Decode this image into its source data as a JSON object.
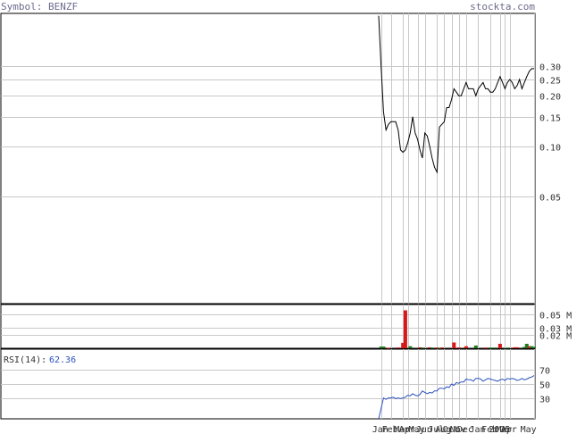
{
  "header": {
    "symbol_label": "Symbol: BENZF",
    "site_label": "stockta.com"
  },
  "colors": {
    "price_line": "#000000",
    "rsi_line": "#2a52be",
    "volume_up": "#1f7a1f",
    "volume_down": "#d41a1a",
    "grid": "#c8c8c8",
    "border": "#000000",
    "header_text": "#6b6b8e"
  },
  "chart_data": [
    {
      "type": "line",
      "name": "price",
      "scale": "log",
      "yticks": [
        0.3,
        0.25,
        0.2,
        0.15,
        0.1,
        0.05
      ],
      "ytick_labels": [
        "0.30",
        "0.25",
        "0.20",
        "0.15",
        "0.10",
        "0.05"
      ],
      "ylim": [
        0.0115,
        0.62
      ],
      "xlim": [
        0,
        65
      ],
      "x": [
        0,
        1,
        2,
        3,
        4,
        5,
        6,
        7,
        8,
        9,
        10,
        11,
        12,
        13,
        14,
        15,
        16,
        17,
        18,
        19,
        20,
        21,
        22,
        23,
        24,
        25,
        26,
        27,
        28,
        29,
        30,
        31,
        32,
        33,
        34,
        35,
        36,
        37,
        38,
        39,
        40,
        41,
        42,
        43,
        44,
        45,
        46,
        47,
        48,
        49,
        50,
        51,
        52,
        53,
        54,
        55,
        56,
        57,
        58,
        59,
        60,
        61,
        62,
        63,
        64
      ],
      "values": [
        0.6,
        0.3,
        0.16,
        0.125,
        0.135,
        0.14,
        0.14,
        0.14,
        0.125,
        0.095,
        0.092,
        0.095,
        0.105,
        0.12,
        0.15,
        0.12,
        0.11,
        0.095,
        0.085,
        0.12,
        0.115,
        0.1,
        0.085,
        0.075,
        0.07,
        0.13,
        0.135,
        0.14,
        0.17,
        0.17,
        0.19,
        0.22,
        0.21,
        0.2,
        0.2,
        0.22,
        0.24,
        0.22,
        0.22,
        0.22,
        0.2,
        0.22,
        0.23,
        0.24,
        0.22,
        0.22,
        0.21,
        0.21,
        0.22,
        0.24,
        0.26,
        0.24,
        0.22,
        0.24,
        0.25,
        0.24,
        0.22,
        0.23,
        0.25,
        0.22,
        0.24,
        0.26,
        0.28,
        0.29,
        0.29
      ]
    },
    {
      "type": "bar",
      "name": "volume",
      "yticks": [
        0.05,
        0.03,
        0.02
      ],
      "ytick_labels": [
        "0.05 M",
        "0.03 M",
        "0.02 M"
      ],
      "ylim": [
        0,
        0.064
      ],
      "xlim": [
        0,
        65
      ],
      "bars": [
        {
          "x": 1,
          "value": 0.0025,
          "dir": "up"
        },
        {
          "x": 2,
          "value": 0.0025,
          "dir": "up"
        },
        {
          "x": 4,
          "value": 0.0008,
          "dir": "down"
        },
        {
          "x": 8,
          "value": 0.0012,
          "dir": "down"
        },
        {
          "x": 10,
          "value": 0.008,
          "dir": "down"
        },
        {
          "x": 11,
          "value": 0.0555,
          "dir": "down"
        },
        {
          "x": 13,
          "value": 0.003,
          "dir": "up"
        },
        {
          "x": 17,
          "value": 0.0015,
          "dir": "down"
        },
        {
          "x": 18,
          "value": 0.001,
          "dir": "up"
        },
        {
          "x": 21,
          "value": 0.0015,
          "dir": "down"
        },
        {
          "x": 22,
          "value": 0.001,
          "dir": "up"
        },
        {
          "x": 24,
          "value": 0.001,
          "dir": "down"
        },
        {
          "x": 25,
          "value": 0.0008,
          "dir": "up"
        },
        {
          "x": 26,
          "value": 0.0012,
          "dir": "down"
        },
        {
          "x": 31,
          "value": 0.0085,
          "dir": "down"
        },
        {
          "x": 33,
          "value": 0.0012,
          "dir": "down"
        },
        {
          "x": 36,
          "value": 0.003,
          "dir": "down"
        },
        {
          "x": 40,
          "value": 0.004,
          "dir": "up"
        },
        {
          "x": 44,
          "value": 0.001,
          "dir": "down"
        },
        {
          "x": 46,
          "value": 0.001,
          "dir": "up"
        },
        {
          "x": 48,
          "value": 0.001,
          "dir": "up"
        },
        {
          "x": 50,
          "value": 0.0065,
          "dir": "down"
        },
        {
          "x": 53,
          "value": 0.001,
          "dir": "up"
        },
        {
          "x": 56,
          "value": 0.0015,
          "dir": "down"
        },
        {
          "x": 57,
          "value": 0.0015,
          "dir": "down"
        },
        {
          "x": 60,
          "value": 0.002,
          "dir": "up"
        },
        {
          "x": 61,
          "value": 0.0065,
          "dir": "up"
        },
        {
          "x": 62,
          "value": 0.003,
          "dir": "down"
        },
        {
          "x": 63,
          "value": 0.003,
          "dir": "up"
        },
        {
          "x": 64,
          "value": 0.002,
          "dir": "up"
        }
      ]
    },
    {
      "type": "line",
      "name": "rsi",
      "label": "RSI(14):",
      "current_value": "62.36",
      "yticks": [
        70,
        50,
        30
      ],
      "ytick_labels": [
        "70",
        "50",
        "30"
      ],
      "ylim": [
        0,
        100
      ],
      "xlim": [
        0,
        65
      ],
      "x": [
        0,
        1,
        2,
        3,
        4,
        5,
        6,
        7,
        8,
        9,
        10,
        11,
        12,
        13,
        14,
        15,
        16,
        17,
        18,
        19,
        20,
        21,
        22,
        23,
        24,
        25,
        26,
        27,
        28,
        29,
        30,
        31,
        32,
        33,
        34,
        35,
        36,
        37,
        38,
        39,
        40,
        41,
        42,
        43,
        44,
        45,
        46,
        47,
        48,
        49,
        50,
        51,
        52,
        53,
        54,
        55,
        56,
        57,
        58,
        59,
        60,
        61,
        62,
        63,
        64
      ],
      "values": [
        0,
        15,
        30,
        28,
        30,
        30,
        31,
        29,
        30,
        29,
        30,
        31,
        34,
        33,
        36,
        34,
        33,
        35,
        40,
        38,
        36,
        38,
        37,
        40,
        40,
        44,
        44,
        43,
        46,
        45,
        50,
        48,
        52,
        51,
        53,
        53,
        57,
        56,
        56,
        54,
        58,
        58,
        57,
        54,
        56,
        58,
        57,
        56,
        55,
        54,
        56,
        57,
        55,
        58,
        57,
        58,
        57,
        55,
        56,
        58,
        56,
        57,
        59,
        60,
        62
      ]
    }
  ],
  "x_axis": {
    "labels": [
      {
        "x": 1,
        "text": "Jan"
      },
      {
        "x": 5,
        "text": "Feb"
      },
      {
        "x": 10,
        "text": "Mar"
      },
      {
        "x": 12,
        "text": "Apr"
      },
      {
        "x": 16,
        "text": "May"
      },
      {
        "x": 19,
        "text": "Jun"
      },
      {
        "x": 24,
        "text": "Jul"
      },
      {
        "x": 27,
        "text": "Aug"
      },
      {
        "x": 30,
        "text": "Oct"
      },
      {
        "x": 33,
        "text": "Nov"
      },
      {
        "x": 36,
        "text": "Dec"
      },
      {
        "x": 41,
        "text": "Jan"
      },
      {
        "x": 46,
        "text": "Feb"
      },
      {
        "x": 49,
        "text": "2005"
      },
      {
        "x": 52,
        "text": "Mar"
      },
      {
        "x": 54,
        "text": "Apr"
      },
      {
        "x": 62,
        "text": "May"
      }
    ],
    "gridlines": [
      1,
      5,
      10,
      12,
      16,
      19,
      24,
      27,
      30,
      33,
      36,
      41,
      46,
      50,
      52,
      54,
      64
    ]
  }
}
